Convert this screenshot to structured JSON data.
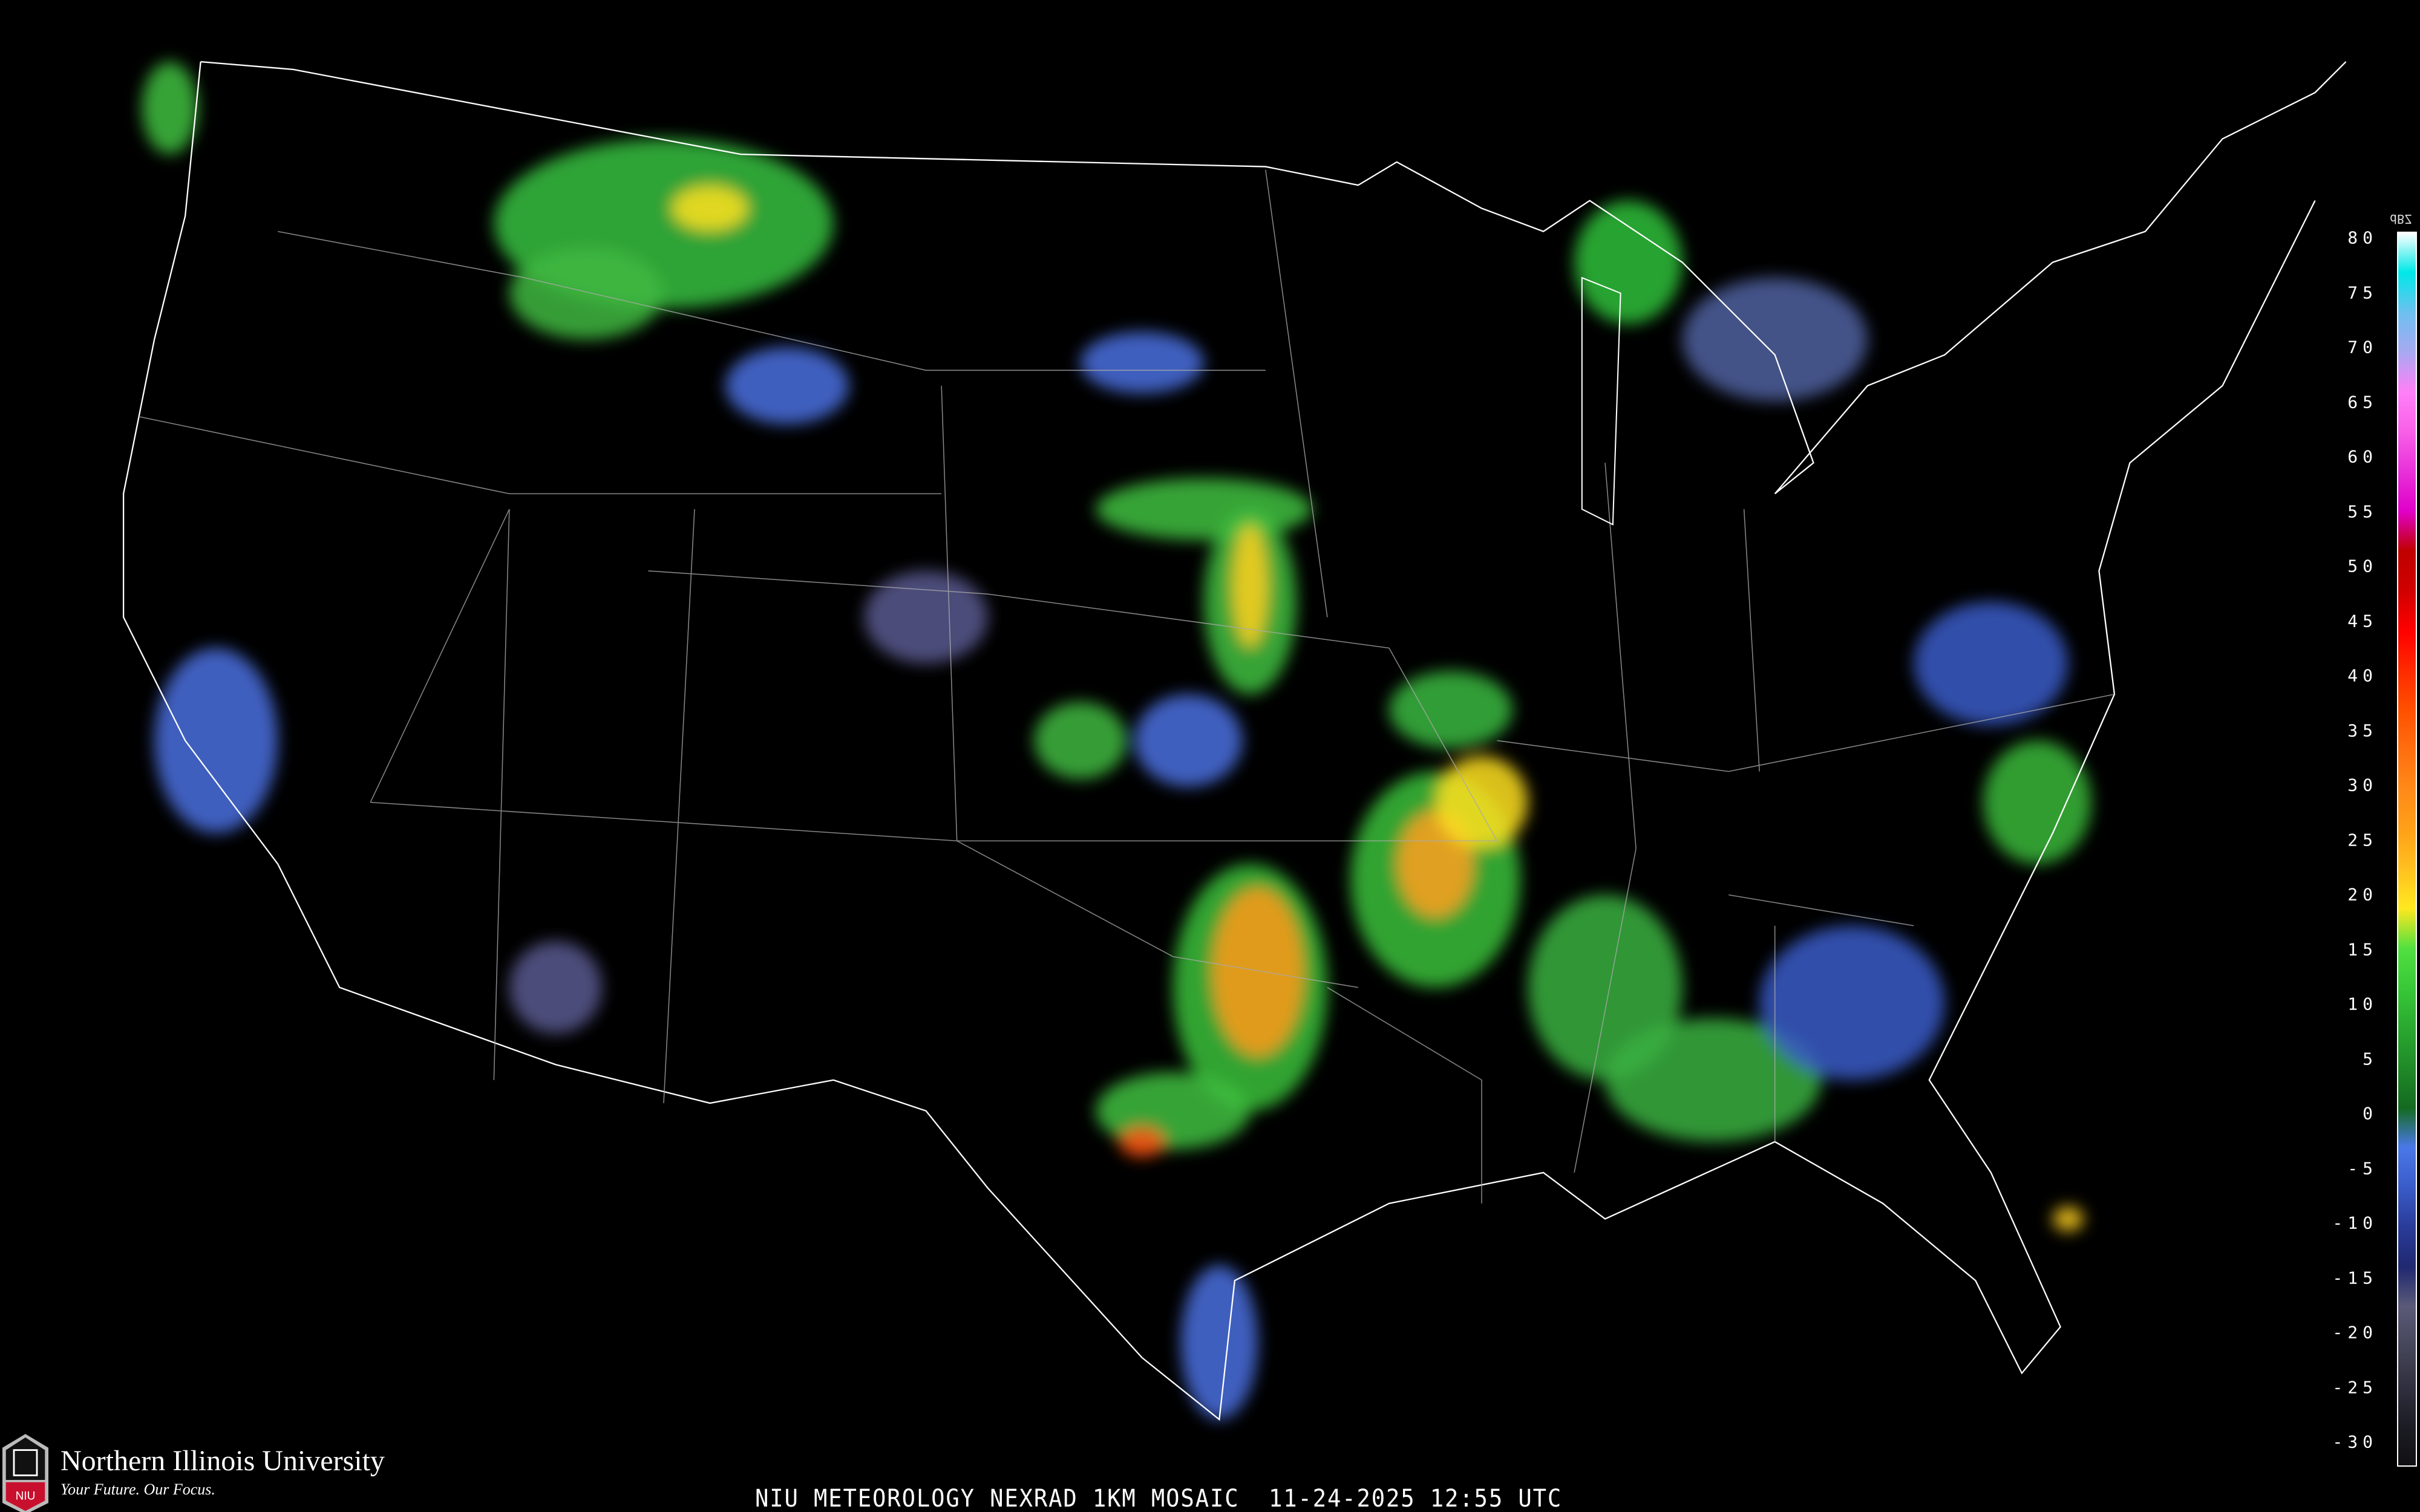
{
  "product_title": "NIU METEOROLOGY NEXRAD 1KM MOSAIC  11-24-2025 12:55 UTC",
  "logo": {
    "name": "Northern Illinois University",
    "tagline": "Your Future. Our Focus.",
    "mark": "NIU"
  },
  "legend": {
    "unit": "dBZ",
    "labels": [
      "80",
      "75",
      "70",
      "65",
      "60",
      "55",
      "50",
      "45",
      "40",
      "35",
      "30",
      "25",
      "20",
      "15",
      "10",
      "5",
      "0",
      "-5",
      "-10",
      "-15",
      "-20",
      "-25",
      "-30"
    ],
    "colors": [
      "#ffffff",
      "#00e8e8",
      "#6ec0f0",
      "#a8a8f0",
      "#ff80f8",
      "#f860e8",
      "#e830d8",
      "#e000c8",
      "#c00000",
      "#d00000",
      "#ff0000",
      "#ff2a00",
      "#ff5000",
      "#ff6e10",
      "#ff8a18",
      "#ffa018",
      "#ffc020",
      "#ffe820",
      "#50e040",
      "#38c838",
      "#2aa830",
      "#208a28",
      "#146a20",
      "#4a78e8",
      "#3a5cc8",
      "#2a3c9a",
      "#202870",
      "#5a5a78",
      "#46465a",
      "#303040",
      "#1c1c24",
      "#101014"
    ]
  }
}
